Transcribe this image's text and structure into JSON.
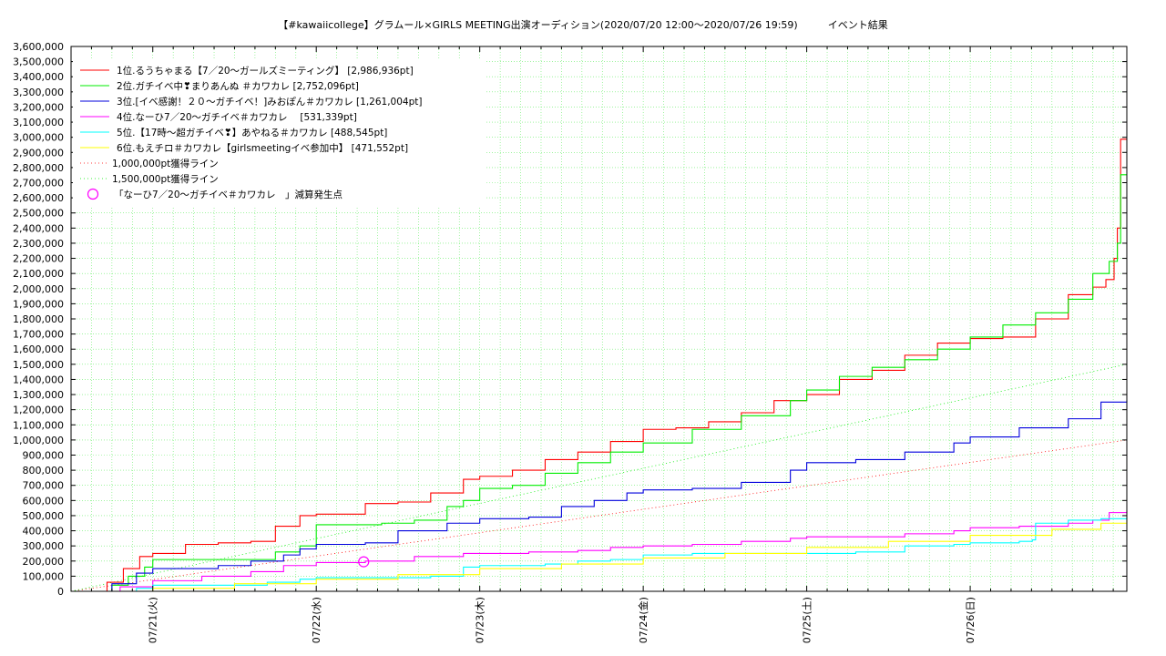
{
  "chart_data": {
    "type": "line",
    "title": "【#kawaiicollege】グラムール×GIRLS MEETING出演オーディション(2020/07/20 12:00～2020/07/26 19:59)　　　イベント結果",
    "xlabel": "",
    "ylabel": "",
    "ylim": [
      0,
      3600000
    ],
    "xlim_days": [
      20.5,
      26.958
    ],
    "grid": true,
    "legend_position": "top-left",
    "x_tick_labels": [
      "07/21(火)",
      "07/22(水)",
      "07/23(木)",
      "07/24(金)",
      "07/25(土)",
      "07/26(日)"
    ],
    "x_tick_days": [
      21,
      22,
      23,
      24,
      25,
      26
    ],
    "y_tick_labels": [
      "0",
      "100,000",
      "200,000",
      "300,000",
      "400,000",
      "500,000",
      "600,000",
      "700,000",
      "800,000",
      "900,000",
      "1,000,000",
      "1,100,000",
      "1,200,000",
      "1,300,000",
      "1,400,000",
      "1,500,000",
      "1,600,000",
      "1,700,000",
      "1,800,000",
      "1,900,000",
      "2,000,000",
      "2,100,000",
      "2,200,000",
      "2,300,000",
      "2,400,000",
      "2,500,000",
      "2,600,000",
      "2,700,000",
      "2,800,000",
      "2,900,000",
      "3,000,000",
      "3,100,000",
      "3,200,000",
      "3,300,000",
      "3,400,000",
      "3,500,000",
      "3,600,000"
    ],
    "y_tick_values": [
      0,
      100000,
      200000,
      300000,
      400000,
      500000,
      600000,
      700000,
      800000,
      900000,
      1000000,
      1100000,
      1200000,
      1300000,
      1400000,
      1500000,
      1600000,
      1700000,
      1800000,
      1900000,
      2000000,
      2100000,
      2200000,
      2300000,
      2400000,
      2500000,
      2600000,
      2700000,
      2800000,
      2900000,
      3000000,
      3100000,
      3200000,
      3300000,
      3400000,
      3500000,
      3600000
    ],
    "series": [
      {
        "name": "1位.るうちゃまる【7／20〜ガールズミーティング】 [2,986,936pt]",
        "color": "#ff0000",
        "step": true,
        "x": [
          20.5,
          20.62,
          20.72,
          20.82,
          20.92,
          21.0,
          21.1,
          21.2,
          21.4,
          21.6,
          21.75,
          21.9,
          22.0,
          22.3,
          22.5,
          22.7,
          22.9,
          23.0,
          23.2,
          23.4,
          23.6,
          23.8,
          24.0,
          24.2,
          24.4,
          24.6,
          24.8,
          25.0,
          25.2,
          25.4,
          25.6,
          25.8,
          26.0,
          26.2,
          26.4,
          26.6,
          26.75,
          26.83,
          26.88,
          26.9,
          26.92,
          26.958
        ],
        "y": [
          0,
          0,
          60000,
          150000,
          230000,
          250000,
          250000,
          310000,
          320000,
          330000,
          430000,
          500000,
          510000,
          580000,
          590000,
          650000,
          740000,
          760000,
          800000,
          870000,
          920000,
          990000,
          1070000,
          1080000,
          1120000,
          1180000,
          1260000,
          1300000,
          1400000,
          1460000,
          1560000,
          1640000,
          1670000,
          1680000,
          1800000,
          1960000,
          2010000,
          2060000,
          2200000,
          2400000,
          2986936,
          2986936
        ]
      },
      {
        "name": "2位.ガチイベ中❣まりあんぬ ＃カワカレ [2,752,096pt]",
        "color": "#00ee00",
        "step": true,
        "x": [
          20.5,
          20.65,
          20.75,
          20.85,
          20.95,
          21.0,
          21.3,
          21.6,
          21.75,
          21.9,
          22.0,
          22.4,
          22.6,
          22.8,
          22.9,
          23.0,
          23.2,
          23.4,
          23.6,
          23.8,
          24.0,
          24.3,
          24.6,
          24.9,
          25.0,
          25.2,
          25.4,
          25.6,
          25.8,
          26.0,
          26.2,
          26.4,
          26.6,
          26.75,
          26.85,
          26.9,
          26.92,
          26.958
        ],
        "y": [
          0,
          0,
          40000,
          100000,
          160000,
          210000,
          210000,
          210000,
          260000,
          300000,
          440000,
          450000,
          470000,
          560000,
          600000,
          680000,
          700000,
          780000,
          850000,
          920000,
          980000,
          1070000,
          1160000,
          1260000,
          1330000,
          1420000,
          1480000,
          1530000,
          1600000,
          1680000,
          1760000,
          1840000,
          1930000,
          2100000,
          2180000,
          2300000,
          2752096,
          2752096
        ]
      },
      {
        "name": "3位.[イベ感謝！２０〜ガチイベ！]みおぽん＃カワカレ [1,261,004pt]",
        "color": "#0000dd",
        "step": true,
        "x": [
          20.5,
          20.6,
          20.75,
          20.9,
          21.0,
          21.2,
          21.4,
          21.6,
          21.8,
          21.9,
          22.0,
          22.3,
          22.5,
          22.8,
          23.0,
          23.3,
          23.5,
          23.7,
          23.9,
          24.0,
          24.3,
          24.6,
          24.9,
          25.0,
          25.3,
          25.6,
          25.9,
          26.0,
          26.3,
          26.6,
          26.8,
          26.958
        ],
        "y": [
          0,
          0,
          50000,
          120000,
          150000,
          150000,
          170000,
          200000,
          240000,
          280000,
          310000,
          320000,
          400000,
          450000,
          480000,
          490000,
          560000,
          600000,
          650000,
          670000,
          680000,
          720000,
          800000,
          850000,
          870000,
          920000,
          980000,
          1020000,
          1080000,
          1140000,
          1250000,
          1261004
        ]
      },
      {
        "name": "4位.なーひ7／20〜ガチイベ＃カワカレ　 [531,339pt]",
        "color": "#ff00ff",
        "step": true,
        "x": [
          20.5,
          20.65,
          20.8,
          21.0,
          21.3,
          21.6,
          21.8,
          22.0,
          22.3,
          22.6,
          22.9,
          23.0,
          23.3,
          23.6,
          23.8,
          24.0,
          24.3,
          24.6,
          24.9,
          25.0,
          25.3,
          25.6,
          25.9,
          26.0,
          26.3,
          26.6,
          26.75,
          26.85,
          26.958
        ],
        "y": [
          0,
          0,
          30000,
          70000,
          100000,
          130000,
          170000,
          190000,
          200000,
          230000,
          250000,
          250000,
          260000,
          270000,
          290000,
          300000,
          310000,
          330000,
          350000,
          360000,
          360000,
          380000,
          400000,
          420000,
          430000,
          450000,
          470000,
          520000,
          531339
        ]
      },
      {
        "name": "5位.【17時〜超ガチイベ❣】あやねる＃カワカレ [488,545pt]",
        "color": "#00ffff",
        "step": true,
        "x": [
          20.5,
          20.7,
          20.9,
          21.0,
          21.5,
          21.7,
          21.9,
          22.0,
          22.5,
          22.7,
          22.9,
          23.0,
          23.4,
          23.6,
          23.8,
          24.0,
          24.3,
          24.6,
          24.9,
          25.0,
          25.3,
          25.6,
          25.9,
          26.0,
          26.3,
          26.38,
          26.4,
          26.6,
          26.8,
          26.958
        ],
        "y": [
          0,
          0,
          20000,
          40000,
          40000,
          60000,
          80000,
          90000,
          90000,
          100000,
          160000,
          170000,
          180000,
          200000,
          210000,
          240000,
          250000,
          250000,
          250000,
          250000,
          260000,
          300000,
          310000,
          320000,
          330000,
          340000,
          450000,
          470000,
          480000,
          488545
        ]
      },
      {
        "name": "6位.もえチロ＃カワカレ【girlsmeetingイベ参加中】 [471,552pt]",
        "color": "#ffff00",
        "step": true,
        "x": [
          20.5,
          20.8,
          21.0,
          21.5,
          22.0,
          22.5,
          23.0,
          23.5,
          24.0,
          24.5,
          25.0,
          25.5,
          26.0,
          26.5,
          26.8,
          26.958
        ],
        "y": [
          0,
          0,
          20000,
          50000,
          80000,
          110000,
          150000,
          180000,
          220000,
          250000,
          290000,
          330000,
          370000,
          410000,
          450000,
          471552
        ]
      },
      {
        "name": "1,000,000pt獲得ライン",
        "color": "#ff0000",
        "dashed": true,
        "x": [
          20.5,
          26.958
        ],
        "y": [
          0,
          1000000
        ]
      },
      {
        "name": "1,500,000pt獲得ライン",
        "color": "#00ee00",
        "dashed": true,
        "x": [
          20.5,
          26.958
        ],
        "y": [
          0,
          1500000
        ]
      }
    ],
    "annotations": [
      {
        "label": "「なーひ7／20〜ガチイベ＃カワカレ　」減算発生点",
        "color": "#ff00ff",
        "marker": "circle",
        "x": 22.29,
        "y": 195000
      }
    ]
  }
}
